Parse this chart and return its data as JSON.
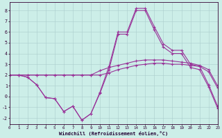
{
  "xlabel": "Windchill (Refroidissement éolien,°C)",
  "bg_color": "#cceee8",
  "grid_color": "#aacccc",
  "line_color": "#993399",
  "xlim_min": 0,
  "xlim_max": 23,
  "ylim_min": -2.6,
  "ylim_max": 8.8,
  "ytick_values": [
    -2,
    -1,
    0,
    1,
    2,
    3,
    4,
    5,
    6,
    7,
    8
  ],
  "xtick_values": [
    0,
    1,
    2,
    3,
    4,
    5,
    6,
    7,
    8,
    9,
    10,
    11,
    12,
    13,
    14,
    15,
    16,
    17,
    18,
    19,
    20,
    21,
    22,
    23
  ],
  "line1_x": [
    0,
    1,
    2,
    3,
    4,
    5,
    6,
    7,
    8,
    9,
    10,
    11,
    12,
    13,
    14,
    15,
    16,
    17,
    18,
    19,
    20,
    21,
    22,
    23
  ],
  "line1_y": [
    2.0,
    2.0,
    2.0,
    2.0,
    2.0,
    2.0,
    2.0,
    2.0,
    2.0,
    2.0,
    2.4,
    2.7,
    2.9,
    3.1,
    3.3,
    3.4,
    3.4,
    3.4,
    3.3,
    3.2,
    3.1,
    2.9,
    2.5,
    1.0
  ],
  "line2_x": [
    0,
    1,
    2,
    3,
    4,
    5,
    6,
    7,
    8,
    9,
    10,
    11,
    12,
    13,
    14,
    15,
    16,
    17,
    18,
    19,
    20,
    21,
    22,
    23
  ],
  "line2_y": [
    2.0,
    2.0,
    1.8,
    1.1,
    -0.1,
    -0.2,
    -1.4,
    -0.9,
    -2.2,
    -1.6,
    0.4,
    2.8,
    6.0,
    6.0,
    8.2,
    8.2,
    6.5,
    4.9,
    4.3,
    4.3,
    3.0,
    2.8,
    1.1,
    -0.9
  ],
  "line3_x": [
    0,
    1,
    2,
    3,
    4,
    5,
    6,
    7,
    8,
    9,
    10,
    11,
    12,
    13,
    14,
    15,
    16,
    17,
    18,
    19,
    20,
    21,
    22,
    23
  ],
  "line3_y": [
    2.0,
    2.0,
    1.8,
    1.1,
    -0.1,
    -0.2,
    -1.4,
    -0.9,
    -2.2,
    -1.6,
    0.3,
    2.5,
    5.8,
    5.8,
    8.0,
    8.0,
    6.2,
    4.6,
    4.0,
    4.0,
    2.7,
    2.5,
    0.9,
    -1.1
  ],
  "line4_x": [
    0,
    1,
    2,
    3,
    4,
    5,
    6,
    7,
    8,
    9,
    10,
    11,
    12,
    13,
    14,
    15,
    16,
    17,
    18,
    19,
    20,
    21,
    22,
    23
  ],
  "line4_y": [
    2.0,
    2.0,
    2.0,
    2.0,
    2.0,
    2.0,
    2.0,
    2.0,
    2.0,
    2.0,
    2.0,
    2.2,
    2.5,
    2.7,
    2.9,
    3.0,
    3.1,
    3.1,
    3.0,
    3.0,
    2.9,
    2.8,
    2.3,
    0.8
  ]
}
